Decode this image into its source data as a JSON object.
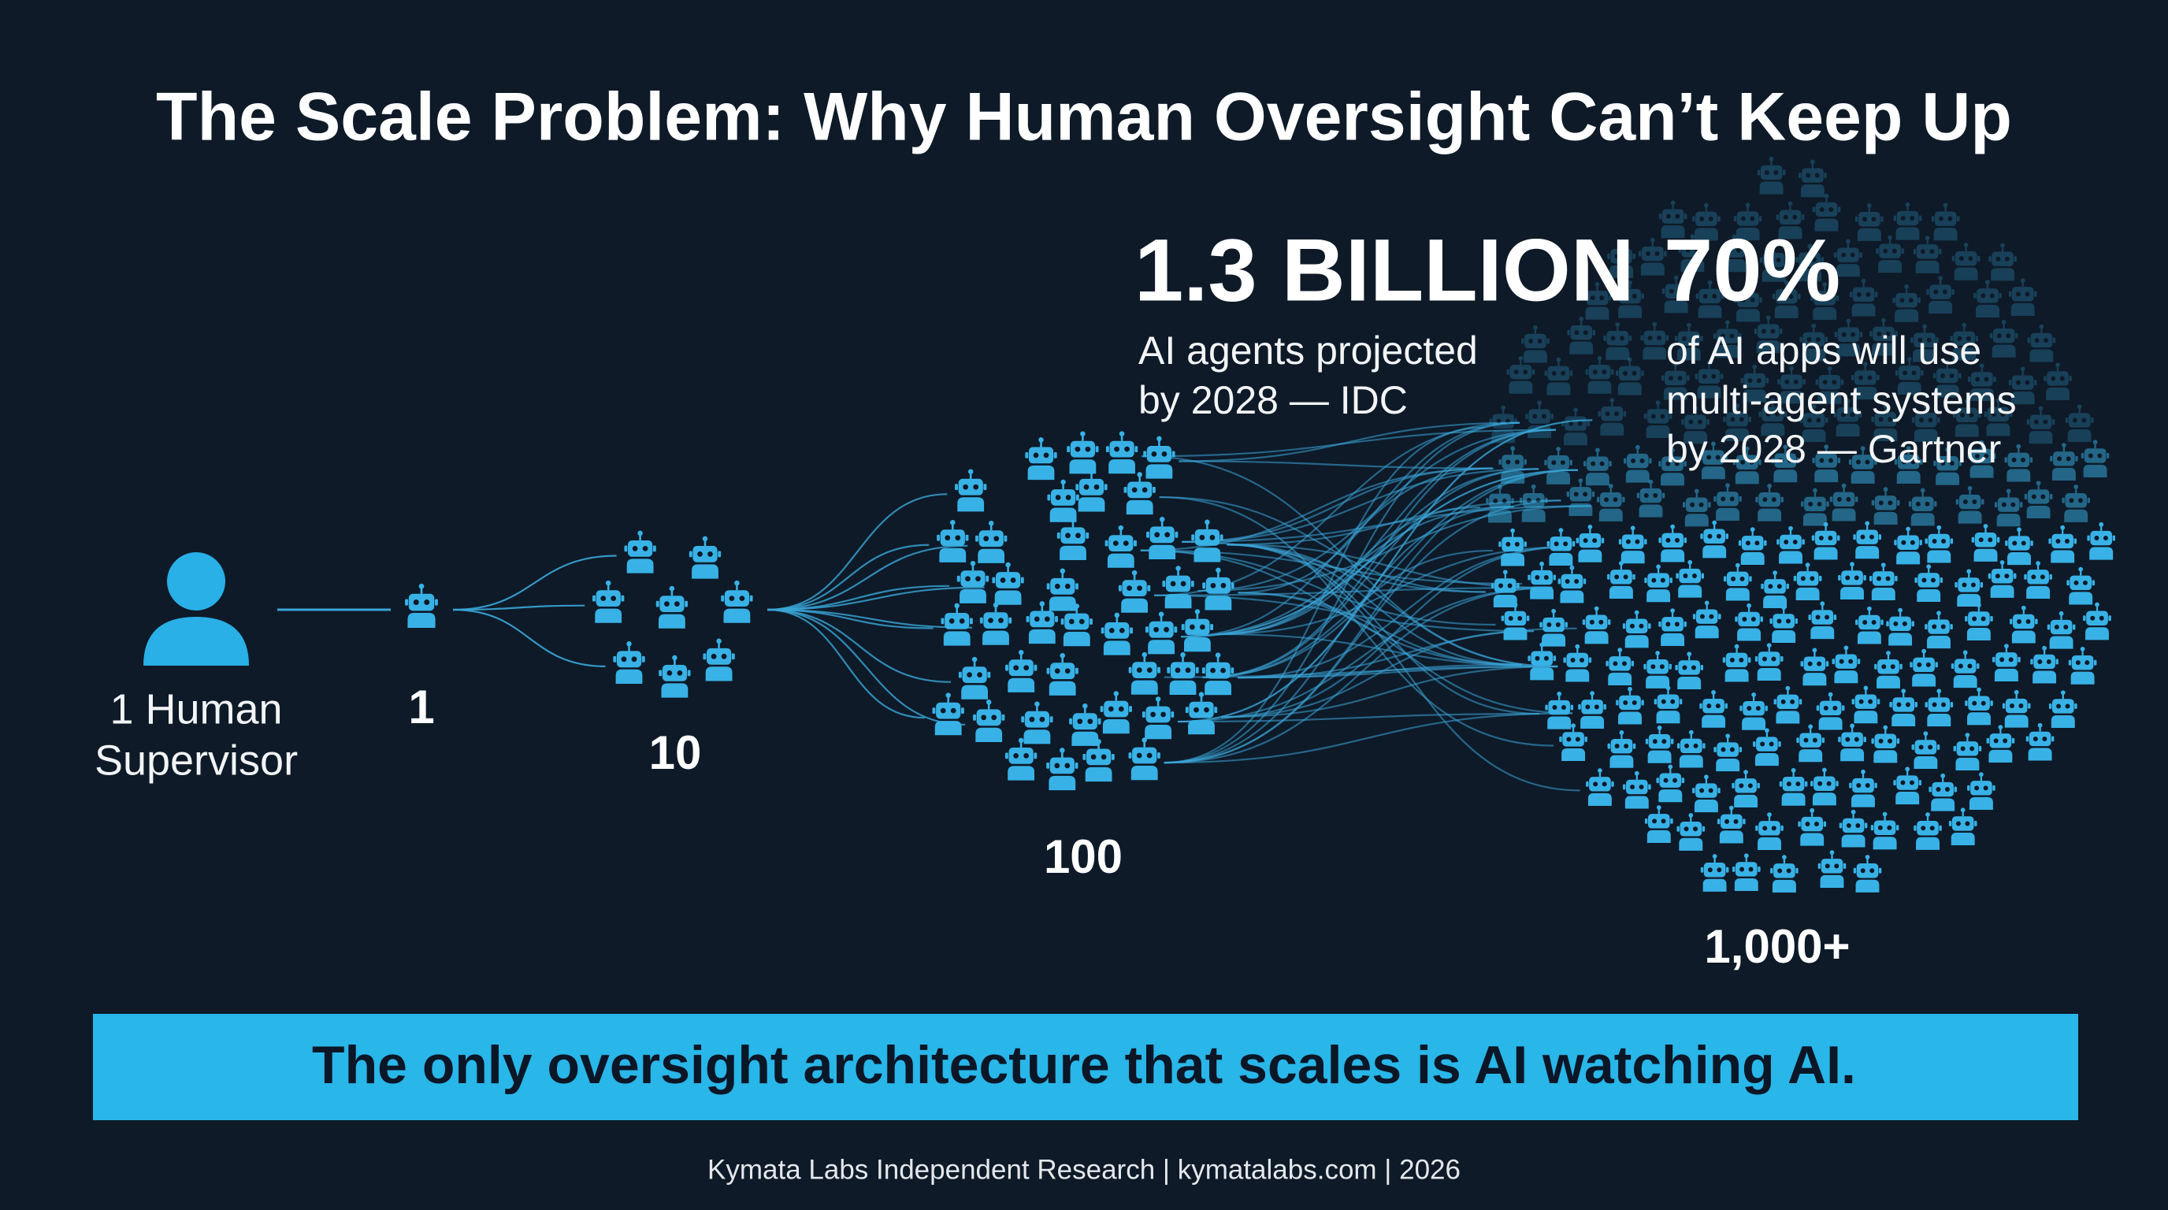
{
  "title": "The Scale Problem: Why Human Oversight Can’t Keep Up",
  "supervisor": {
    "lines": [
      "1 Human",
      "Supervisor"
    ]
  },
  "stages": [
    {
      "label": "1"
    },
    {
      "label": "10"
    },
    {
      "label": "100"
    },
    {
      "label": "1,000+"
    }
  ],
  "stats": [
    {
      "headline": "1.3 BILLION",
      "lines": [
        "AI agents projected",
        "by 2028 — IDC"
      ]
    },
    {
      "headline": "70%",
      "lines": [
        "of AI apps will use",
        "multi-agent systems",
        "by 2028 — Gartner"
      ]
    }
  ],
  "banner": "The only oversight architecture that scales is AI watching AI.",
  "footer": "Kymata Labs Independent Research | kymatalabs.com | 2026"
}
